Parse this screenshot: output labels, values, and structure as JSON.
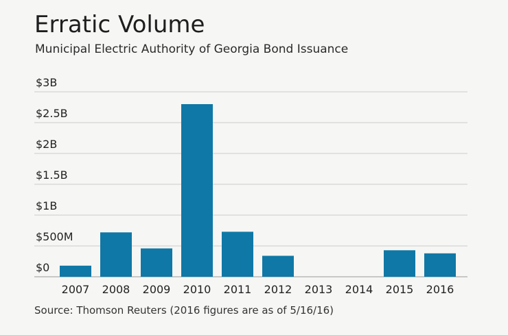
{
  "title": "Erratic Volume",
  "subtitle": "Municipal Electric Authority of Georgia Bond Issuance",
  "source": "Source: Thomson Reuters (2016 figures are as of 5/16/16)",
  "colors": {
    "bar": "#0f78a6",
    "grid": "#cccccc",
    "axis": "#999999",
    "text": "#222222"
  },
  "chart_data": {
    "type": "bar",
    "categories": [
      "2007",
      "2008",
      "2009",
      "2010",
      "2011",
      "2012",
      "2013",
      "2014",
      "2015",
      "2016"
    ],
    "values": [
      180000000,
      720000000,
      460000000,
      2800000000,
      730000000,
      340000000,
      0,
      0,
      430000000,
      380000000
    ],
    "yticks": [
      0,
      500000000,
      1000000000,
      1500000000,
      2000000000,
      2500000000,
      3000000000
    ],
    "ytick_labels": [
      "$0",
      "$500M",
      "$1B",
      "$1.5B",
      "$2B",
      "$2.5B",
      "$3B"
    ],
    "ylim": [
      0,
      3000000000
    ],
    "xlabel": "",
    "ylabel": "",
    "grid": true,
    "legend": "none"
  }
}
